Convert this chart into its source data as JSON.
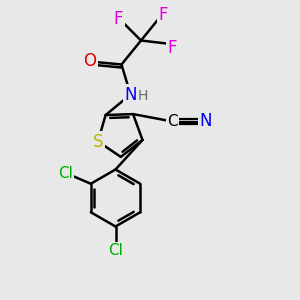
{
  "background_color": "#e8e8e8",
  "bond_color": "#000000",
  "bond_width": 1.8,
  "figsize": [
    3.0,
    3.0
  ],
  "dpi": 100,
  "atoms": {
    "S": {
      "color": "#b8b800"
    },
    "N": {
      "color": "#0000ee"
    },
    "O": {
      "color": "#dd0000"
    },
    "F": {
      "color": "#dd00dd"
    },
    "Cl": {
      "color": "#00aa00"
    },
    "H": {
      "color": "#666666"
    }
  },
  "xlim": [
    0,
    10
  ],
  "ylim": [
    0,
    10
  ],
  "label_fontsize": 11
}
